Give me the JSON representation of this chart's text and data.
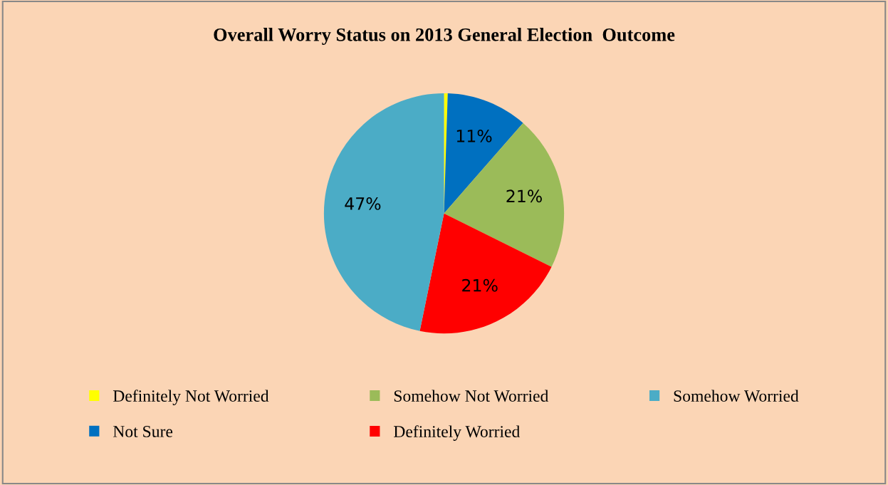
{
  "chart_data": {
    "type": "pie",
    "title": "Overall Worry Status on 2013 General Election  Outcome",
    "categories": [
      "Definitely Not Worried",
      "Not Sure",
      "Somehow Not Worried",
      "Definitely Worried",
      "Somehow Worried"
    ],
    "values": [
      0.5,
      11,
      21,
      21,
      47
    ],
    "value_labels": [
      null,
      "11%",
      "21%",
      "21%",
      "47%"
    ],
    "colors": [
      "#ffff00",
      "#0070c0",
      "#9bbb59",
      "#ff0000",
      "#4bacc6"
    ],
    "legend": "bottom"
  }
}
